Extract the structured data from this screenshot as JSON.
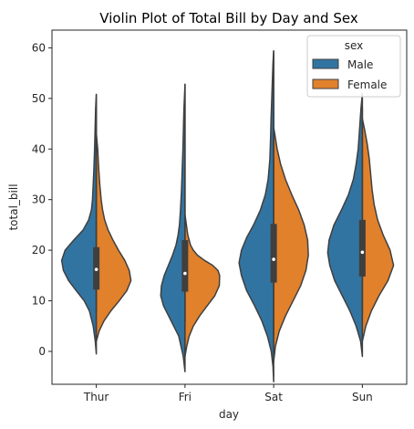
{
  "chart_data": {
    "type": "violin",
    "title": "Violin Plot of Total Bill by Day and Sex",
    "xlabel": "day",
    "ylabel": "total_bill",
    "categories": [
      "Thur",
      "Fri",
      "Sat",
      "Sun"
    ],
    "ylim": [
      -6.5,
      63.5
    ],
    "yticks": [
      0,
      10,
      20,
      30,
      40,
      50,
      60
    ],
    "split": true,
    "legend": {
      "title": "sex",
      "placement": "top-right",
      "entries": [
        "Male",
        "Female"
      ]
    },
    "series": [
      {
        "name": "Male",
        "color": "#3274a1",
        "violins": [
          {
            "min": 7.7,
            "max": 50.8,
            "median": 16.2,
            "q1": 12.2,
            "q3": 20.6,
            "shape": [
              [
                -0.5,
                0.0
              ],
              [
                2,
                0.03
              ],
              [
                5,
                0.09
              ],
              [
                8,
                0.2
              ],
              [
                10,
                0.35
              ],
              [
                12,
                0.58
              ],
              [
                14,
                0.8
              ],
              [
                16,
                0.95
              ],
              [
                18,
                1.0
              ],
              [
                20,
                0.9
              ],
              [
                22,
                0.65
              ],
              [
                24,
                0.38
              ],
              [
                26,
                0.22
              ],
              [
                28,
                0.14
              ],
              [
                30,
                0.11
              ],
              [
                33,
                0.09
              ],
              [
                36,
                0.07
              ],
              [
                40,
                0.05
              ],
              [
                44,
                0.035
              ],
              [
                48,
                0.02
              ],
              [
                50.8,
                0.0
              ]
            ]
          },
          {
            "min": 8.0,
            "max": 52.8,
            "median": 15.4,
            "q1": 11.8,
            "q3": 22.0,
            "shape": [
              [
                -4,
                0.0
              ],
              [
                -1,
                0.05
              ],
              [
                3,
                0.18
              ],
              [
                6,
                0.4
              ],
              [
                9,
                0.62
              ],
              [
                11,
                0.7
              ],
              [
                13,
                0.68
              ],
              [
                15,
                0.6
              ],
              [
                17,
                0.48
              ],
              [
                19,
                0.36
              ],
              [
                21,
                0.26
              ],
              [
                23,
                0.2
              ],
              [
                25,
                0.16
              ],
              [
                28,
                0.13
              ],
              [
                32,
                0.1
              ],
              [
                36,
                0.08
              ],
              [
                40,
                0.06
              ],
              [
                44,
                0.045
              ],
              [
                48,
                0.03
              ],
              [
                52.8,
                0.0
              ]
            ]
          },
          {
            "min": 7.7,
            "max": 59.4,
            "median": 18.2,
            "q1": 13.6,
            "q3": 25.2,
            "shape": [
              [
                -6,
                0.0
              ],
              [
                -3,
                0.02
              ],
              [
                0,
                0.07
              ],
              [
                3,
                0.18
              ],
              [
                6,
                0.34
              ],
              [
                9,
                0.55
              ],
              [
                12,
                0.78
              ],
              [
                15,
                0.93
              ],
              [
                17.5,
                1.0
              ],
              [
                20,
                0.93
              ],
              [
                22.5,
                0.78
              ],
              [
                25,
                0.58
              ],
              [
                28,
                0.38
              ],
              [
                31,
                0.24
              ],
              [
                34,
                0.16
              ],
              [
                38,
                0.11
              ],
              [
                42,
                0.09
              ],
              [
                46,
                0.075
              ],
              [
                50,
                0.055
              ],
              [
                54,
                0.035
              ],
              [
                57,
                0.02
              ],
              [
                59.4,
                0.0
              ]
            ]
          },
          {
            "min": 7.3,
            "max": 48.2,
            "median": 19.6,
            "q1": 14.8,
            "q3": 26.0,
            "shape": [
              [
                -1,
                0.0
              ],
              [
                2,
                0.05
              ],
              [
                5,
                0.18
              ],
              [
                8,
                0.36
              ],
              [
                11,
                0.58
              ],
              [
                14,
                0.8
              ],
              [
                17,
                0.94
              ],
              [
                19.5,
                1.0
              ],
              [
                22,
                0.96
              ],
              [
                25,
                0.82
              ],
              [
                28,
                0.6
              ],
              [
                31,
                0.4
              ],
              [
                34,
                0.26
              ],
              [
                37,
                0.18
              ],
              [
                40,
                0.12
              ],
              [
                44,
                0.08
              ],
              [
                48,
                0.04
              ],
              [
                51,
                0.0
              ]
            ]
          }
        ]
      },
      {
        "name": "Female",
        "color": "#e1812c",
        "violins": [
          {
            "min": 8.4,
            "max": 43.1,
            "median": 16.2,
            "q1": 12.2,
            "q3": 20.6,
            "shape": [
              [
                2,
                0.0
              ],
              [
                4,
                0.08
              ],
              [
                6,
                0.22
              ],
              [
                8,
                0.42
              ],
              [
                10,
                0.66
              ],
              [
                12,
                0.88
              ],
              [
                14,
                1.0
              ],
              [
                16,
                0.95
              ],
              [
                18,
                0.82
              ],
              [
                20,
                0.64
              ],
              [
                22,
                0.48
              ],
              [
                24,
                0.34
              ],
              [
                26,
                0.24
              ],
              [
                28,
                0.18
              ],
              [
                30,
                0.14
              ],
              [
                33,
                0.1
              ],
              [
                36,
                0.07
              ],
              [
                40,
                0.04
              ],
              [
                43.1,
                0.0
              ]
            ]
          },
          {
            "min": 5.75,
            "max": 27.0,
            "median": 15.4,
            "q1": 11.8,
            "q3": 22.0,
            "shape": [
              [
                -1,
                0.0
              ],
              [
                1,
                0.05
              ],
              [
                3,
                0.12
              ],
              [
                5,
                0.24
              ],
              [
                7,
                0.42
              ],
              [
                9,
                0.64
              ],
              [
                11,
                0.86
              ],
              [
                13,
                0.99
              ],
              [
                15,
                1.0
              ],
              [
                16,
                0.95
              ],
              [
                17,
                0.8
              ],
              [
                18,
                0.56
              ],
              [
                19,
                0.36
              ],
              [
                20,
                0.24
              ],
              [
                21,
                0.16
              ],
              [
                23,
                0.08
              ],
              [
                25,
                0.04
              ],
              [
                27,
                0.0
              ]
            ]
          },
          {
            "min": 3.07,
            "max": 44.3,
            "median": 18.2,
            "q1": 13.6,
            "q3": 25.2,
            "shape": [
              [
                -2,
                0.0
              ],
              [
                1,
                0.05
              ],
              [
                4,
                0.16
              ],
              [
                7,
                0.34
              ],
              [
                10,
                0.56
              ],
              [
                13,
                0.78
              ],
              [
                16,
                0.93
              ],
              [
                19,
                1.0
              ],
              [
                22,
                0.98
              ],
              [
                25,
                0.88
              ],
              [
                28,
                0.72
              ],
              [
                31,
                0.52
              ],
              [
                34,
                0.34
              ],
              [
                37,
                0.2
              ],
              [
                40,
                0.1
              ],
              [
                43,
                0.03
              ],
              [
                44.3,
                0.0
              ]
            ]
          },
          {
            "min": 9.6,
            "max": 45.5,
            "median": 19.6,
            "q1": 14.8,
            "q3": 26.0,
            "shape": [
              [
                2,
                0.0
              ],
              [
                5,
                0.1
              ],
              [
                8,
                0.26
              ],
              [
                11,
                0.48
              ],
              [
                14,
                0.74
              ],
              [
                17,
                0.9
              ],
              [
                20,
                0.8
              ],
              [
                23,
                0.6
              ],
              [
                26,
                0.44
              ],
              [
                29,
                0.34
              ],
              [
                32,
                0.28
              ],
              [
                35,
                0.24
              ],
              [
                38,
                0.2
              ],
              [
                41,
                0.14
              ],
              [
                44,
                0.06
              ],
              [
                46,
                0.0
              ]
            ]
          }
        ]
      }
    ]
  }
}
